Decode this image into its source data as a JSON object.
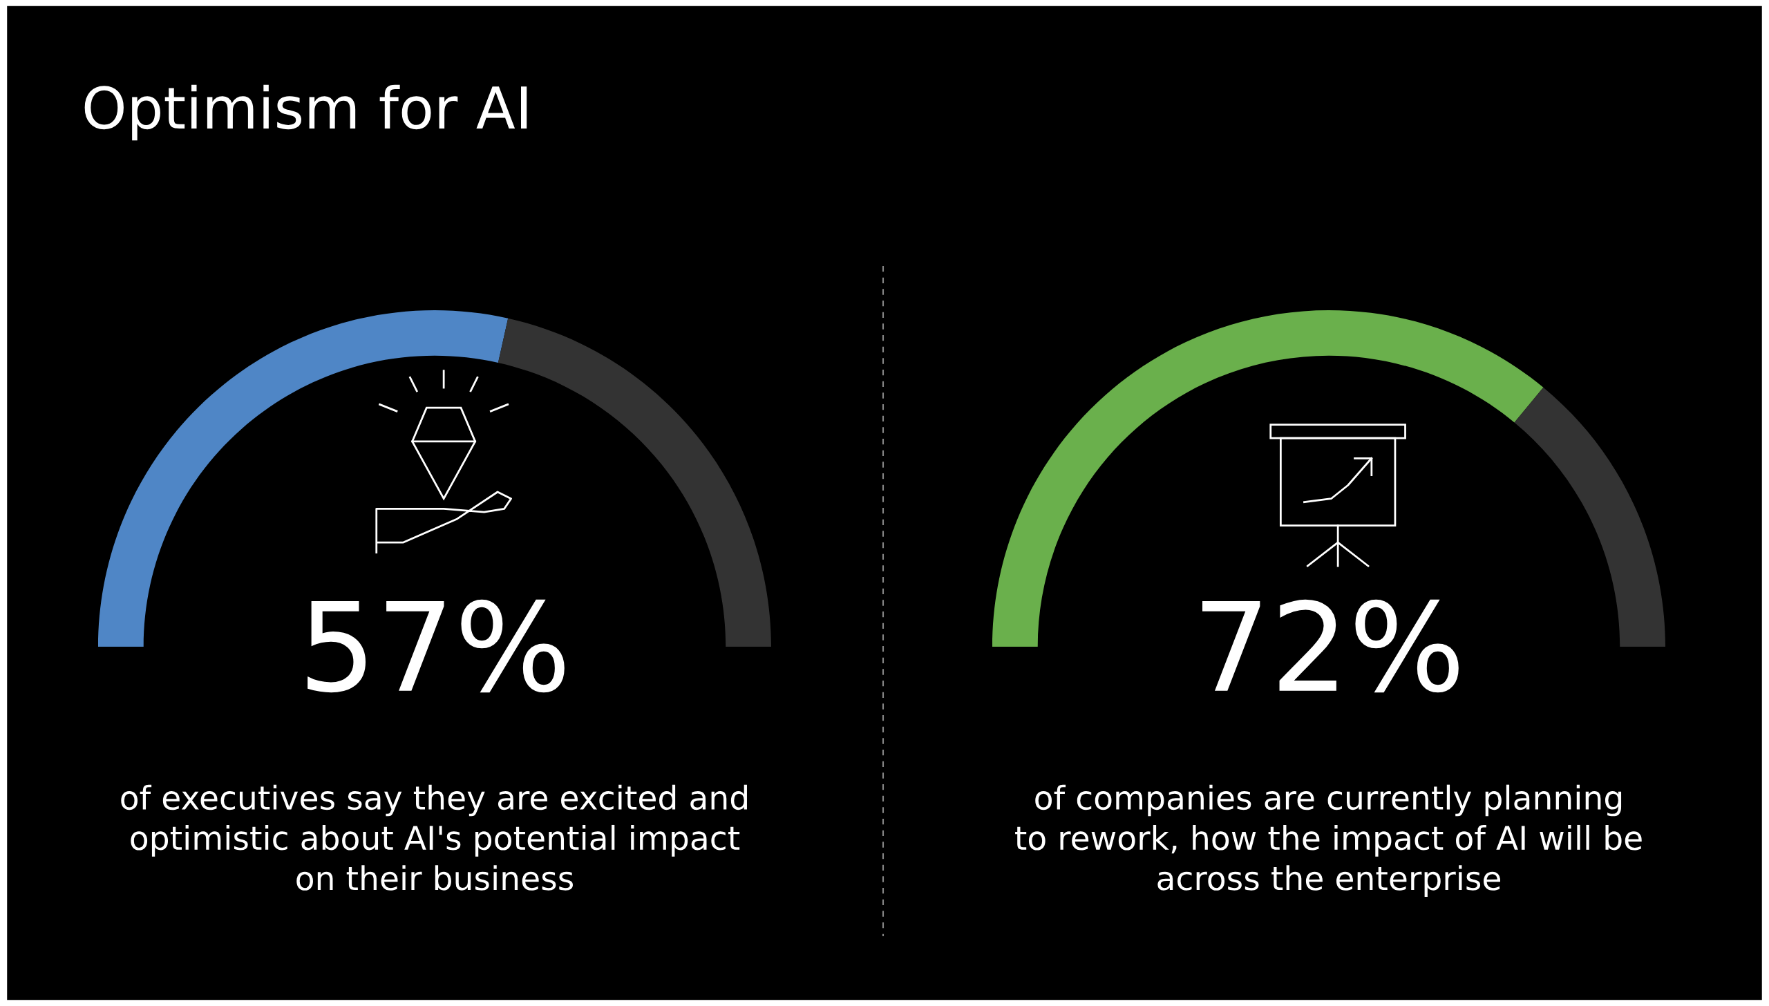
{
  "chart_data": [
    {
      "type": "donut",
      "title": "Optimism for AI",
      "categories": [
        null,
        null
      ],
      "values": [
        57,
        43
      ],
      "colors": [
        "#4f86c6",
        "#333333"
      ],
      "annotations": [
        "57%",
        "of executives say they are excited and\noptimistic about AI's potential impact\non their business"
      ]
    },
    {
      "type": "donut",
      "categories": [
        null,
        null
      ],
      "values": [
        72,
        28
      ],
      "colors": [
        "#6ab04c",
        "#333333"
      ],
      "annotations": [
        "72%",
        "of companies are currently planning\nto rework, how the impact of AI will be\nacross the enterprise"
      ]
    }
  ]
}
